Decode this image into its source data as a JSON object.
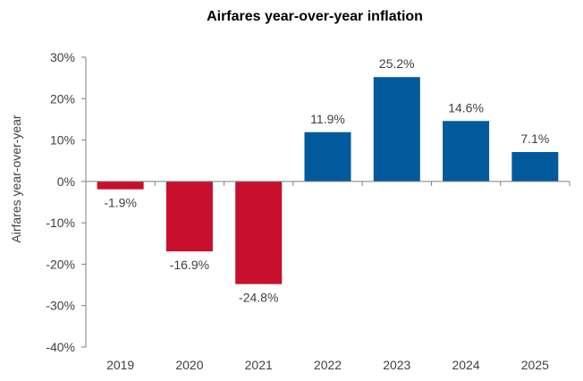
{
  "chart_data": {
    "type": "bar",
    "title": "Airfares year-over-year inflation",
    "xlabel": "",
    "ylabel": "Airfares year-over-year",
    "categories": [
      "2019",
      "2020",
      "2021",
      "2022",
      "2023",
      "2024",
      "2025"
    ],
    "values": [
      -1.9,
      -16.9,
      -24.8,
      11.9,
      25.2,
      14.6,
      7.1
    ],
    "data_labels": [
      "-1.9%",
      "-16.9%",
      "-24.8%",
      "11.9%",
      "25.2%",
      "14.6%",
      "7.1%"
    ],
    "ylim": [
      -40,
      30
    ],
    "y_ticks": [
      30,
      20,
      10,
      0,
      -10,
      -20,
      -30,
      -40
    ],
    "y_tick_labels": [
      "30%",
      "20%",
      "10%",
      "0%",
      "-10%",
      "-20%",
      "-30%",
      "-40%"
    ],
    "grid": false,
    "legend": "none",
    "colors": {
      "negative": "#C8102E",
      "positive": "#005A9C",
      "axis": "#7F7F7F"
    }
  }
}
